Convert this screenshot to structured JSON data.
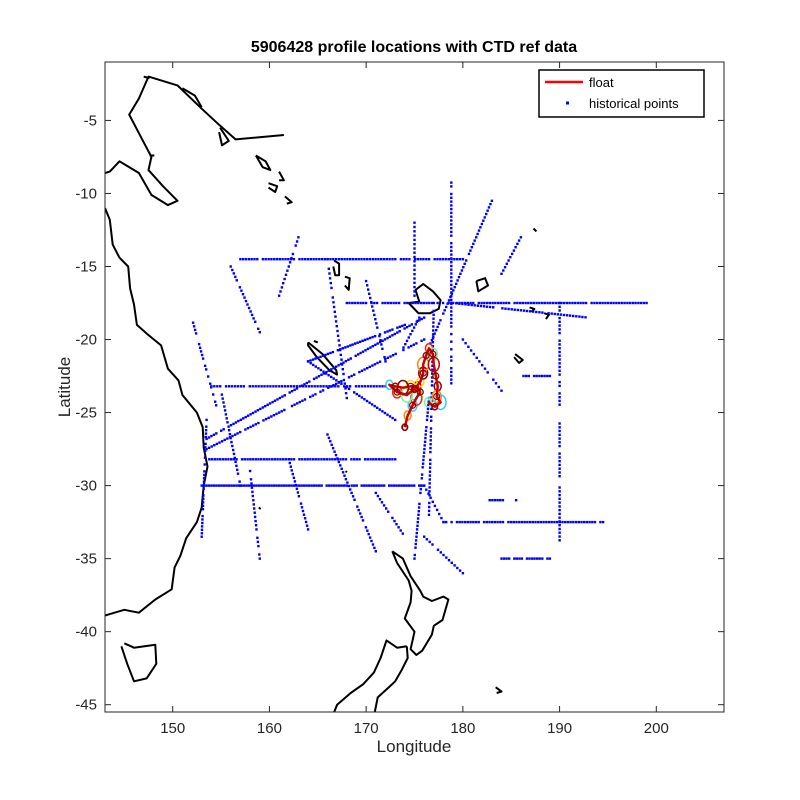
{
  "chart_data": {
    "type": "scatter",
    "title": "5906428 profile locations with CTD ref data",
    "xlabel": "Longitude",
    "ylabel": "Latitude",
    "xlim": [
      143,
      207
    ],
    "ylim": [
      -45.5,
      -1
    ],
    "xticks": [
      150,
      160,
      170,
      180,
      190,
      200
    ],
    "yticks": [
      -5,
      -10,
      -15,
      -20,
      -25,
      -30,
      -35,
      -40,
      -45
    ],
    "xtick_labels": [
      "150",
      "160",
      "170",
      "180",
      "190",
      "200"
    ],
    "ytick_labels": [
      "-5",
      "-10",
      "-15",
      "-20",
      "-25",
      "-30",
      "-35",
      "-40",
      "-45"
    ],
    "grid": false,
    "legend": {
      "placement": "top-right",
      "entries": [
        {
          "label": "float",
          "color": "#ff0000",
          "marker": "line"
        },
        {
          "label": "historical points",
          "color": "#0000ff",
          "marker": "dot"
        }
      ]
    },
    "series": [
      {
        "name": "historical points",
        "color": "#0000ff",
        "style": "dots",
        "lines": [
          {
            "start": [
              153,
              -30
            ],
            "end": [
              176,
              -30
            ],
            "n": 90
          },
          {
            "start": [
              176,
              -30
            ],
            "end": [
              178,
              -32.5
            ],
            "n": 10
          },
          {
            "start": [
              178,
              -32.5
            ],
            "end": [
              194.5,
              -32.5
            ],
            "n": 60
          },
          {
            "start": [
              153.5,
              -28.2
            ],
            "end": [
              173,
              -28.2
            ],
            "n": 70
          },
          {
            "start": [
              153.5,
              -26.8
            ],
            "end": [
              176,
              -18.5
            ],
            "n": 90
          },
          {
            "start": [
              153.5,
              -27.5
            ],
            "end": [
              176,
              -20
            ],
            "n": 85
          },
          {
            "start": [
              154,
              -23.2
            ],
            "end": [
              172,
              -23.2
            ],
            "n": 60
          },
          {
            "start": [
              168,
              -17.5
            ],
            "end": [
              199,
              -17.5
            ],
            "n": 110
          },
          {
            "start": [
              157,
              -14.5
            ],
            "end": [
              180,
              -14.5
            ],
            "n": 80
          },
          {
            "start": [
              179,
              -17.5
            ],
            "end": [
              193,
              -18.5
            ],
            "n": 45
          },
          {
            "start": [
              178.8,
              -9
            ],
            "end": [
              178.8,
              -23
            ],
            "n": 55
          },
          {
            "start": [
              190,
              -17.5
            ],
            "end": [
              190,
              -34
            ],
            "n": 65
          },
          {
            "start": [
              183,
              -10.5
            ],
            "end": [
              176.5,
              -20.5
            ],
            "n": 45
          },
          {
            "start": [
              176.5,
              -24
            ],
            "end": [
              175,
              -35
            ],
            "n": 45
          },
          {
            "start": [
              177,
              -17.5
            ],
            "end": [
              176.5,
              -32
            ],
            "n": 55
          },
          {
            "start": [
              174,
              -19
            ],
            "end": [
              164,
              -21.5
            ],
            "n": 40
          },
          {
            "start": [
              164,
              -21.5
            ],
            "end": [
              173,
              -25.5
            ],
            "n": 35
          },
          {
            "start": [
              153.5,
              -25.5
            ],
            "end": [
              153,
              -33.5
            ],
            "n": 35
          },
          {
            "start": [
              166,
              -26.5
            ],
            "end": [
              171,
              -34.5
            ],
            "n": 35
          },
          {
            "start": [
              162,
              -28.2
            ],
            "end": [
              164,
              -33
            ],
            "n": 20
          },
          {
            "start": [
              186,
              -22.5
            ],
            "end": [
              189,
              -22.5
            ],
            "n": 12
          },
          {
            "start": [
              182.5,
              -31
            ],
            "end": [
              185.5,
              -31
            ],
            "n": 12
          },
          {
            "start": [
              184,
              -35
            ],
            "end": [
              189,
              -35
            ],
            "n": 20
          },
          {
            "start": [
              170,
              -16
            ],
            "end": [
              172,
              -21.5
            ],
            "n": 20
          },
          {
            "start": [
              166,
              -14.5
            ],
            "end": [
              168,
              -24
            ],
            "n": 30
          },
          {
            "start": [
              175.5,
              -18.5
            ],
            "end": [
              173.5,
              -21
            ],
            "n": 12
          },
          {
            "start": [
              152,
              -18.6
            ],
            "end": [
              154.5,
              -24.5
            ],
            "n": 25
          },
          {
            "start": [
              155,
              -23.5
            ],
            "end": [
              157,
              -30
            ],
            "n": 25
          },
          {
            "start": [
              156,
              -15
            ],
            "end": [
              159,
              -19.5
            ],
            "n": 20
          },
          {
            "start": [
              175,
              -12
            ],
            "end": [
              175,
              -17
            ],
            "n": 18
          },
          {
            "start": [
              176,
              -33.5
            ],
            "end": [
              180,
              -36
            ],
            "n": 15
          },
          {
            "start": [
              171,
              -30.5
            ],
            "end": [
              174,
              -33.5
            ],
            "n": 15
          },
          {
            "start": [
              158,
              -29
            ],
            "end": [
              159,
              -35
            ],
            "n": 22
          },
          {
            "start": [
              161,
              -17
            ],
            "end": [
              163,
              -13
            ],
            "n": 15
          },
          {
            "start": [
              184,
              -15.5
            ],
            "end": [
              186,
              -13
            ],
            "n": 12
          },
          {
            "start": [
              180,
              -20
            ],
            "end": [
              184,
              -23.5
            ],
            "n": 15
          }
        ]
      },
      {
        "name": "float",
        "color": "#ff0000",
        "style": "loops",
        "track": [
          [
            174,
            -26
          ],
          [
            174.3,
            -25.2
          ],
          [
            174.8,
            -24.5
          ],
          [
            175.2,
            -24
          ],
          [
            175.6,
            -23.6
          ],
          [
            175.3,
            -23.2
          ],
          [
            174.6,
            -23.2
          ],
          [
            173.8,
            -23.3
          ],
          [
            173,
            -23.2
          ],
          [
            172.4,
            -23.1
          ],
          [
            173.2,
            -23.6
          ],
          [
            174.2,
            -23.8
          ],
          [
            175,
            -23.4
          ],
          [
            175.6,
            -22.9
          ],
          [
            175.9,
            -22.3
          ],
          [
            175.9,
            -21.7
          ],
          [
            176.2,
            -21.1
          ],
          [
            176.5,
            -20.6
          ],
          [
            176.9,
            -21
          ],
          [
            177,
            -21.7
          ],
          [
            177.2,
            -22.5
          ],
          [
            177.4,
            -23.2
          ],
          [
            177.3,
            -23.9
          ],
          [
            177.7,
            -24.3
          ],
          [
            177.1,
            -24.6
          ],
          [
            176.4,
            -24.3
          ]
        ],
        "loop_palette": [
          "#8b0000",
          "#cc0000",
          "#ff2200",
          "#ff8800",
          "#ffdd00",
          "#66ff99",
          "#33ccff"
        ]
      }
    ],
    "coastlines": [
      [
        [
          161.5,
          -6
        ],
        [
          156.5,
          -6.3
        ],
        [
          154.8,
          -5.3
        ],
        [
          153,
          -4.2
        ],
        [
          150.5,
          -2.6
        ],
        [
          147.5,
          -2
        ],
        [
          146.5,
          -3.5
        ],
        [
          145.5,
          -4.6
        ],
        [
          147,
          -6.5
        ],
        [
          147.8,
          -7.5
        ],
        [
          147.5,
          -8.4
        ],
        [
          149,
          -9.5
        ],
        [
          150.5,
          -10.5
        ],
        [
          149.5,
          -10.8
        ],
        [
          147.8,
          -10.1
        ],
        [
          146.5,
          -8.6
        ],
        [
          144.5,
          -7.8
        ],
        [
          143.5,
          -8.5
        ],
        [
          143,
          -8.6
        ]
      ],
      [
        [
          143,
          -11
        ],
        [
          143.5,
          -11.8
        ],
        [
          143.8,
          -13.5
        ],
        [
          144.5,
          -14.4
        ],
        [
          145.4,
          -15
        ],
        [
          145.6,
          -16.5
        ],
        [
          146,
          -17.6
        ],
        [
          146.3,
          -19
        ],
        [
          147.5,
          -19.7
        ],
        [
          148.8,
          -20.4
        ],
        [
          149.5,
          -22
        ],
        [
          150.6,
          -22.8
        ],
        [
          151,
          -23.8
        ],
        [
          152.5,
          -25
        ],
        [
          153.1,
          -26
        ],
        [
          153.2,
          -27.4
        ],
        [
          153.6,
          -28.7
        ],
        [
          153.2,
          -30
        ],
        [
          153,
          -31.5
        ],
        [
          152.5,
          -32.5
        ],
        [
          151.4,
          -33.6
        ],
        [
          150.8,
          -34.8
        ],
        [
          150.2,
          -35.6
        ],
        [
          149.9,
          -37.1
        ],
        [
          148.2,
          -37.8
        ],
        [
          146.5,
          -38.7
        ],
        [
          145,
          -38.5
        ],
        [
          143.5,
          -38.8
        ],
        [
          143,
          -38.9
        ]
      ],
      [
        [
          145,
          -40.8
        ],
        [
          146,
          -41.1
        ],
        [
          148.2,
          -40.9
        ],
        [
          148.3,
          -42.2
        ],
        [
          147.3,
          -43.2
        ],
        [
          146,
          -43.4
        ],
        [
          145.3,
          -42.2
        ],
        [
          144.7,
          -41
        ]
      ],
      [
        [
          164,
          -20.2
        ],
        [
          165.5,
          -21
        ],
        [
          166.9,
          -22.1
        ],
        [
          167,
          -22.4
        ],
        [
          166.2,
          -22.1
        ],
        [
          164.9,
          -21.2
        ],
        [
          164,
          -20.4
        ],
        [
          164,
          -20.2
        ]
      ],
      [
        [
          172.7,
          -34.5
        ],
        [
          173.8,
          -35
        ],
        [
          174.6,
          -36.2
        ],
        [
          175.6,
          -37.2
        ],
        [
          175.9,
          -37.6
        ],
        [
          176.8,
          -37.9
        ],
        [
          178,
          -37.6
        ],
        [
          178.5,
          -37.8
        ],
        [
          177.9,
          -39.2
        ],
        [
          177,
          -39.6
        ],
        [
          176.8,
          -40.2
        ],
        [
          175.8,
          -41.3
        ],
        [
          175.2,
          -41.6
        ],
        [
          174.6,
          -41.2
        ],
        [
          175,
          -40
        ],
        [
          174,
          -39.1
        ],
        [
          174.6,
          -38
        ],
        [
          174.7,
          -37.2
        ],
        [
          174.4,
          -36.5
        ],
        [
          173.2,
          -35.3
        ],
        [
          172.7,
          -34.5
        ]
      ],
      [
        [
          174.2,
          -41
        ],
        [
          173.2,
          -41.1
        ],
        [
          172.1,
          -40.6
        ],
        [
          171.5,
          -41.8
        ],
        [
          170.8,
          -42.8
        ],
        [
          169.7,
          -43.6
        ],
        [
          168.4,
          -44.2
        ],
        [
          167,
          -45
        ],
        [
          166.7,
          -45.5
        ]
      ],
      [
        [
          174.2,
          -41
        ],
        [
          174.3,
          -41.8
        ],
        [
          173.7,
          -42.6
        ],
        [
          173,
          -43.4
        ],
        [
          172.2,
          -43.9
        ],
        [
          171.2,
          -44.5
        ],
        [
          170.9,
          -45.5
        ]
      ],
      [
        [
          174.4,
          -17.5
        ],
        [
          175.5,
          -17.4
        ],
        [
          175.1,
          -16.6
        ],
        [
          175.9,
          -16.2
        ],
        [
          176.9,
          -16.7
        ],
        [
          177.7,
          -17.3
        ],
        [
          177.5,
          -17.9
        ],
        [
          176.6,
          -18.2
        ],
        [
          175.4,
          -18.2
        ],
        [
          174.4,
          -17.5
        ]
      ],
      [
        [
          181.4,
          -16
        ],
        [
          182.3,
          -15.8
        ],
        [
          182.6,
          -16.3
        ],
        [
          181.6,
          -16.7
        ],
        [
          181.4,
          -16
        ]
      ],
      [
        [
          166.7,
          -14.6
        ],
        [
          167.2,
          -14.8
        ],
        [
          167.2,
          -15.6
        ],
        [
          166.8,
          -15.6
        ],
        [
          166.6,
          -15
        ]
      ],
      [
        [
          167.8,
          -15.7
        ],
        [
          168.3,
          -15.8
        ],
        [
          168.2,
          -16.6
        ],
        [
          167.8,
          -16.3
        ]
      ],
      [
        [
          158.6,
          -7.4
        ],
        [
          159.6,
          -7.8
        ],
        [
          160.1,
          -8.4
        ],
        [
          159.3,
          -8.2
        ],
        [
          158.6,
          -7.4
        ]
      ],
      [
        [
          159.9,
          -9.3
        ],
        [
          160.8,
          -9.5
        ],
        [
          160.6,
          -9.9
        ],
        [
          159.9,
          -9.6
        ]
      ],
      [
        [
          161,
          -8.5
        ],
        [
          161.5,
          -9.1
        ],
        [
          161,
          -9.1
        ]
      ],
      [
        [
          161.6,
          -10.2
        ],
        [
          162.3,
          -10.6
        ],
        [
          161.8,
          -10.7
        ]
      ],
      [
        [
          154.9,
          -5.5
        ],
        [
          155.8,
          -6.4
        ],
        [
          155.1,
          -6.7
        ],
        [
          154.8,
          -5.8
        ]
      ],
      [
        [
          153,
          -4.1
        ],
        [
          152.3,
          -3.3
        ],
        [
          151,
          -2.8
        ]
      ],
      [
        [
          147,
          -2
        ],
        [
          147.6,
          -2.1
        ]
      ],
      [
        [
          147.6,
          -7.4
        ],
        [
          148.1,
          -7.4
        ]
      ],
      [
        [
          185.4,
          -21
        ],
        [
          186.2,
          -21.4
        ],
        [
          185.8,
          -21.6
        ],
        [
          185.3,
          -21.2
        ]
      ],
      [
        [
          188.4,
          -18.2
        ],
        [
          188.9,
          -18.3
        ],
        [
          188.6,
          -18.6
        ]
      ],
      [
        [
          186.9,
          -17.8
        ],
        [
          187.4,
          -17.9
        ],
        [
          187.1,
          -18.1
        ]
      ],
      [
        [
          187.3,
          -12.4
        ],
        [
          187.6,
          -12.6
        ]
      ],
      [
        [
          164.6,
          -20.1
        ],
        [
          165,
          -20.2
        ]
      ],
      [
        [
          183.4,
          -43.8
        ],
        [
          184,
          -44.1
        ],
        [
          183.5,
          -44.2
        ]
      ],
      [
        [
          158.9,
          -31.5
        ],
        [
          159.1,
          -31.6
        ]
      ],
      [
        [
          167.9,
          -29
        ],
        [
          168,
          -29.1
        ]
      ]
    ]
  }
}
